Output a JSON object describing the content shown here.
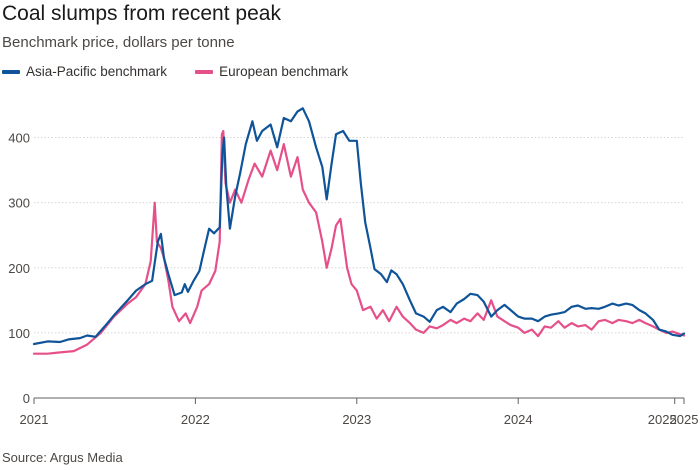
{
  "title": "Coal slumps from recent peak",
  "subtitle": "Benchmark price, dollars per tonne",
  "source": "Source: Argus Media",
  "colors": {
    "asia": "#0f5499",
    "europe": "#e6508a",
    "grid": "#d9d5d0",
    "axis": "#66605c"
  },
  "chart_data": {
    "type": "line",
    "title": "Coal slumps from recent peak",
    "subtitle": "Benchmark price, dollars per tonne",
    "xlabel": "",
    "ylabel": "",
    "ylim": [
      0,
      450
    ],
    "xlim": [
      "2021-01-01",
      "2025-01-10"
    ],
    "yticks": [
      0,
      100,
      200,
      300,
      400
    ],
    "xticks": [
      "2021",
      "2022",
      "2023",
      "2024",
      "2025",
      "2025"
    ],
    "grid": true,
    "legend_position": "top-left",
    "series": [
      {
        "name": "Asia-Pacific benchmark",
        "color": "#0f5499",
        "points": [
          [
            "2021-01-01",
            83
          ],
          [
            "2021-02-01",
            87
          ],
          [
            "2021-03-01",
            86
          ],
          [
            "2021-03-20",
            90
          ],
          [
            "2021-04-15",
            92
          ],
          [
            "2021-05-01",
            96
          ],
          [
            "2021-05-20",
            94
          ],
          [
            "2021-06-10",
            110
          ],
          [
            "2021-07-01",
            127
          ],
          [
            "2021-08-01",
            150
          ],
          [
            "2021-08-20",
            165
          ],
          [
            "2021-09-10",
            175
          ],
          [
            "2021-09-25",
            180
          ],
          [
            "2021-10-08",
            240
          ],
          [
            "2021-10-15",
            252
          ],
          [
            "2021-10-22",
            215
          ],
          [
            "2021-11-01",
            190
          ],
          [
            "2021-11-15",
            158
          ],
          [
            "2021-12-01",
            162
          ],
          [
            "2021-12-08",
            175
          ],
          [
            "2021-12-15",
            163
          ],
          [
            "2021-12-28",
            180
          ],
          [
            "2022-01-10",
            195
          ],
          [
            "2022-01-20",
            225
          ],
          [
            "2022-02-01",
            260
          ],
          [
            "2022-02-12",
            253
          ],
          [
            "2022-02-25",
            262
          ],
          [
            "2022-03-03",
            375
          ],
          [
            "2022-03-07",
            400
          ],
          [
            "2022-03-12",
            325
          ],
          [
            "2022-03-20",
            260
          ],
          [
            "2022-04-01",
            310
          ],
          [
            "2022-04-12",
            345
          ],
          [
            "2022-04-25",
            390
          ],
          [
            "2022-05-10",
            425
          ],
          [
            "2022-05-20",
            395
          ],
          [
            "2022-06-01",
            410
          ],
          [
            "2022-06-20",
            420
          ],
          [
            "2022-07-05",
            385
          ],
          [
            "2022-07-20",
            430
          ],
          [
            "2022-08-05",
            425
          ],
          [
            "2022-08-20",
            440
          ],
          [
            "2022-09-01",
            445
          ],
          [
            "2022-09-15",
            425
          ],
          [
            "2022-10-01",
            385
          ],
          [
            "2022-10-15",
            355
          ],
          [
            "2022-10-25",
            305
          ],
          [
            "2022-11-05",
            360
          ],
          [
            "2022-11-15",
            405
          ],
          [
            "2022-12-01",
            410
          ],
          [
            "2022-12-15",
            395
          ],
          [
            "2023-01-01",
            395
          ],
          [
            "2023-01-10",
            330
          ],
          [
            "2023-01-20",
            270
          ],
          [
            "2023-02-01",
            230
          ],
          [
            "2023-02-10",
            198
          ],
          [
            "2023-02-25",
            190
          ],
          [
            "2023-03-10",
            178
          ],
          [
            "2023-03-20",
            196
          ],
          [
            "2023-04-01",
            190
          ],
          [
            "2023-04-15",
            175
          ],
          [
            "2023-05-01",
            150
          ],
          [
            "2023-05-15",
            130
          ],
          [
            "2023-06-01",
            125
          ],
          [
            "2023-06-15",
            117
          ],
          [
            "2023-07-01",
            135
          ],
          [
            "2023-07-15",
            140
          ],
          [
            "2023-08-01",
            132
          ],
          [
            "2023-08-15",
            145
          ],
          [
            "2023-09-01",
            152
          ],
          [
            "2023-09-15",
            160
          ],
          [
            "2023-10-01",
            158
          ],
          [
            "2023-10-15",
            148
          ],
          [
            "2023-11-01",
            125
          ],
          [
            "2023-11-15",
            135
          ],
          [
            "2023-12-01",
            143
          ],
          [
            "2023-12-15",
            135
          ],
          [
            "2024-01-01",
            125
          ],
          [
            "2024-01-15",
            122
          ],
          [
            "2024-02-01",
            122
          ],
          [
            "2024-02-15",
            118
          ],
          [
            "2024-03-01",
            125
          ],
          [
            "2024-03-15",
            128
          ],
          [
            "2024-04-01",
            130
          ],
          [
            "2024-04-15",
            132
          ],
          [
            "2024-05-01",
            140
          ],
          [
            "2024-05-15",
            142
          ],
          [
            "2024-06-01",
            137
          ],
          [
            "2024-06-15",
            138
          ],
          [
            "2024-07-01",
            137
          ],
          [
            "2024-07-15",
            140
          ],
          [
            "2024-08-01",
            145
          ],
          [
            "2024-08-15",
            142
          ],
          [
            "2024-09-01",
            145
          ],
          [
            "2024-09-15",
            143
          ],
          [
            "2024-10-01",
            135
          ],
          [
            "2024-10-15",
            130
          ],
          [
            "2024-11-01",
            120
          ],
          [
            "2024-11-15",
            105
          ],
          [
            "2024-12-01",
            102
          ],
          [
            "2024-12-15",
            97
          ],
          [
            "2025-01-01",
            95
          ],
          [
            "2025-01-10",
            99
          ]
        ]
      },
      {
        "name": "European benchmark",
        "color": "#e6508a",
        "points": [
          [
            "2021-01-01",
            68
          ],
          [
            "2021-02-01",
            68
          ],
          [
            "2021-03-01",
            70
          ],
          [
            "2021-04-01",
            72
          ],
          [
            "2021-05-01",
            82
          ],
          [
            "2021-06-01",
            100
          ],
          [
            "2021-07-01",
            125
          ],
          [
            "2021-08-01",
            145
          ],
          [
            "2021-08-20",
            155
          ],
          [
            "2021-09-10",
            175
          ],
          [
            "2021-09-22",
            210
          ],
          [
            "2021-10-01",
            300
          ],
          [
            "2021-10-06",
            240
          ],
          [
            "2021-10-15",
            230
          ],
          [
            "2021-10-22",
            215
          ],
          [
            "2021-11-01",
            180
          ],
          [
            "2021-11-10",
            140
          ],
          [
            "2021-11-25",
            118
          ],
          [
            "2021-12-10",
            130
          ],
          [
            "2021-12-20",
            115
          ],
          [
            "2022-01-05",
            140
          ],
          [
            "2022-01-15",
            165
          ],
          [
            "2022-02-01",
            175
          ],
          [
            "2022-02-15",
            195
          ],
          [
            "2022-02-25",
            240
          ],
          [
            "2022-03-02",
            405
          ],
          [
            "2022-03-05",
            410
          ],
          [
            "2022-03-10",
            330
          ],
          [
            "2022-03-20",
            300
          ],
          [
            "2022-04-01",
            320
          ],
          [
            "2022-04-15",
            300
          ],
          [
            "2022-05-01",
            335
          ],
          [
            "2022-05-15",
            360
          ],
          [
            "2022-06-01",
            340
          ],
          [
            "2022-06-20",
            380
          ],
          [
            "2022-07-05",
            350
          ],
          [
            "2022-07-20",
            390
          ],
          [
            "2022-08-05",
            340
          ],
          [
            "2022-08-20",
            370
          ],
          [
            "2022-09-01",
            320
          ],
          [
            "2022-09-15",
            300
          ],
          [
            "2022-10-01",
            285
          ],
          [
            "2022-10-15",
            240
          ],
          [
            "2022-10-25",
            200
          ],
          [
            "2022-11-05",
            230
          ],
          [
            "2022-11-15",
            265
          ],
          [
            "2022-11-25",
            275
          ],
          [
            "2022-12-10",
            200
          ],
          [
            "2022-12-20",
            175
          ],
          [
            "2023-01-01",
            165
          ],
          [
            "2023-01-15",
            135
          ],
          [
            "2023-02-01",
            140
          ],
          [
            "2023-02-15",
            122
          ],
          [
            "2023-03-01",
            135
          ],
          [
            "2023-03-15",
            118
          ],
          [
            "2023-04-01",
            140
          ],
          [
            "2023-04-15",
            125
          ],
          [
            "2023-05-01",
            115
          ],
          [
            "2023-05-15",
            105
          ],
          [
            "2023-06-01",
            100
          ],
          [
            "2023-06-15",
            110
          ],
          [
            "2023-07-01",
            107
          ],
          [
            "2023-07-15",
            112
          ],
          [
            "2023-08-01",
            120
          ],
          [
            "2023-08-15",
            115
          ],
          [
            "2023-09-01",
            122
          ],
          [
            "2023-09-15",
            118
          ],
          [
            "2023-10-01",
            130
          ],
          [
            "2023-10-15",
            120
          ],
          [
            "2023-11-01",
            150
          ],
          [
            "2023-11-15",
            125
          ],
          [
            "2023-12-01",
            118
          ],
          [
            "2023-12-15",
            112
          ],
          [
            "2024-01-01",
            108
          ],
          [
            "2024-01-15",
            100
          ],
          [
            "2024-02-01",
            105
          ],
          [
            "2024-02-15",
            95
          ],
          [
            "2024-03-01",
            110
          ],
          [
            "2024-03-15",
            108
          ],
          [
            "2024-04-01",
            118
          ],
          [
            "2024-04-15",
            108
          ],
          [
            "2024-05-01",
            115
          ],
          [
            "2024-05-15",
            110
          ],
          [
            "2024-06-01",
            112
          ],
          [
            "2024-06-15",
            105
          ],
          [
            "2024-07-01",
            118
          ],
          [
            "2024-07-15",
            120
          ],
          [
            "2024-08-01",
            115
          ],
          [
            "2024-08-15",
            120
          ],
          [
            "2024-09-01",
            118
          ],
          [
            "2024-09-15",
            115
          ],
          [
            "2024-10-01",
            120
          ],
          [
            "2024-10-15",
            115
          ],
          [
            "2024-11-01",
            110
          ],
          [
            "2024-11-15",
            105
          ],
          [
            "2024-12-01",
            100
          ],
          [
            "2024-12-15",
            102
          ],
          [
            "2025-01-01",
            98
          ],
          [
            "2025-01-10",
            96
          ]
        ]
      }
    ]
  }
}
